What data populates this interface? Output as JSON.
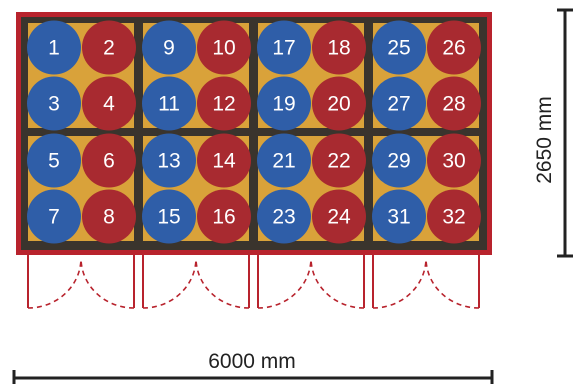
{
  "dimensions": {
    "width_label": "6000 mm",
    "height_label": "2650 mm"
  },
  "colors": {
    "frame": "#b8232d",
    "inner_dark": "#3a342d",
    "fill_gold": "#d9a23a",
    "blue": "#2f5ea8",
    "red": "#a82a30",
    "dim_line": "#222222"
  },
  "modules": [
    {
      "cells": [
        [
          "1",
          "2"
        ],
        [
          "3",
          "4"
        ],
        [
          "5",
          "6"
        ],
        [
          "7",
          "8"
        ]
      ]
    },
    {
      "cells": [
        [
          "9",
          "10"
        ],
        [
          "11",
          "12"
        ],
        [
          "13",
          "14"
        ],
        [
          "15",
          "16"
        ]
      ]
    },
    {
      "cells": [
        [
          "17",
          "18"
        ],
        [
          "19",
          "20"
        ],
        [
          "21",
          "22"
        ],
        [
          "23",
          "24"
        ]
      ]
    },
    {
      "cells": [
        [
          "25",
          "26"
        ],
        [
          "27",
          "28"
        ],
        [
          "29",
          "30"
        ],
        [
          "31",
          "32"
        ]
      ]
    }
  ]
}
